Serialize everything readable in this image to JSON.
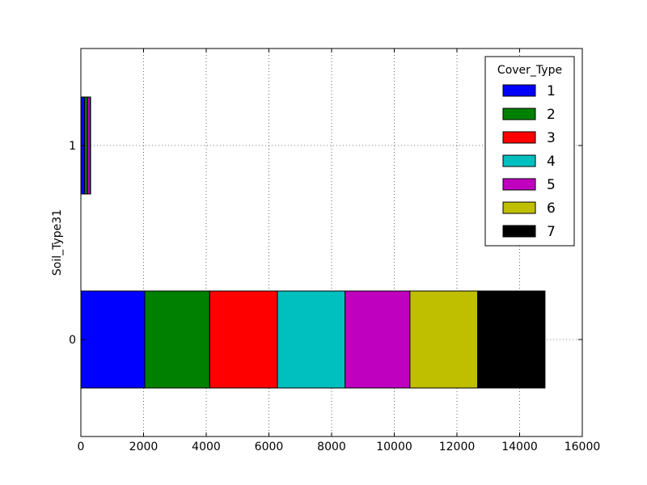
{
  "chart_data": {
    "type": "bar",
    "orientation": "horizontal",
    "stacked": true,
    "ylabel": "Soil_Type31",
    "xlabel": "",
    "categories": [
      "0",
      "1"
    ],
    "xlim": [
      0,
      16000
    ],
    "xticks": [
      0,
      2000,
      4000,
      6000,
      8000,
      10000,
      12000,
      14000,
      16000
    ],
    "grid": true,
    "legend": {
      "title": "Cover_Type",
      "placement": "top-right"
    },
    "series": [
      {
        "name": "1",
        "color": "#0000ff",
        "values": [
          2040,
          120
        ]
      },
      {
        "name": "2",
        "color": "#008000",
        "values": [
          2070,
          90
        ]
      },
      {
        "name": "3",
        "color": "#ff0000",
        "values": [
          2160,
          0
        ]
      },
      {
        "name": "4",
        "color": "#00bfbf",
        "values": [
          2160,
          0
        ]
      },
      {
        "name": "5",
        "color": "#bf00bf",
        "values": [
          2070,
          90
        ]
      },
      {
        "name": "6",
        "color": "#bfbf00",
        "values": [
          2160,
          0
        ]
      },
      {
        "name": "7",
        "color": "#000000",
        "values": [
          2150,
          10
        ]
      }
    ]
  }
}
